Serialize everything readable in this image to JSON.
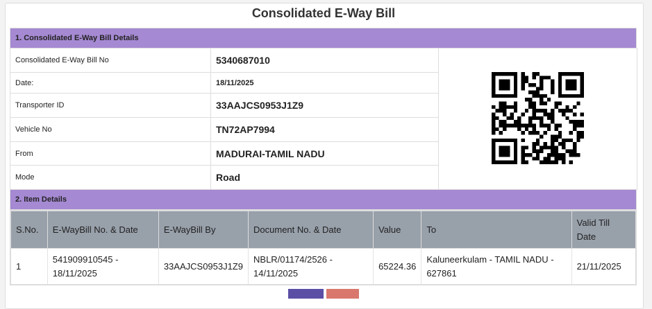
{
  "title": "Consolidated E-Way Bill",
  "section1": {
    "heading": "1. Consolidated E-Way Bill Details",
    "rows": [
      {
        "label": "Consolidated E-Way Bill No",
        "value": "5340687010"
      },
      {
        "label": "Date:",
        "value": "18/11/2025"
      },
      {
        "label": "Transporter ID",
        "value": "33AAJCS0953J1Z9"
      },
      {
        "label": "Vehicle No",
        "value": "TN72AP7994"
      },
      {
        "label": "From",
        "value": "MADURAI-TAMIL NADU"
      },
      {
        "label": "Mode",
        "value": "Road"
      }
    ]
  },
  "section2": {
    "heading": "2. Item Details",
    "columns": [
      "S.No.",
      "E-WayBill No. & Date",
      "E-WayBill By",
      "Document No. & Date",
      "Value",
      "To",
      "Valid Till Date"
    ],
    "rows": [
      [
        "1",
        "541909910545 - 18/11/2025",
        "33AAJCS0953J1Z9",
        "NBLR/01174/2526 - 14/11/2025",
        "65224.36",
        "Kaluneerkulam - TAMIL NADU - 627861",
        "21/11/2025"
      ]
    ]
  },
  "colors": {
    "section_header": "#a589d2",
    "table_header": "#98a0aa",
    "button_primary": "#5b4fa5",
    "button_danger": "#d9776d"
  }
}
